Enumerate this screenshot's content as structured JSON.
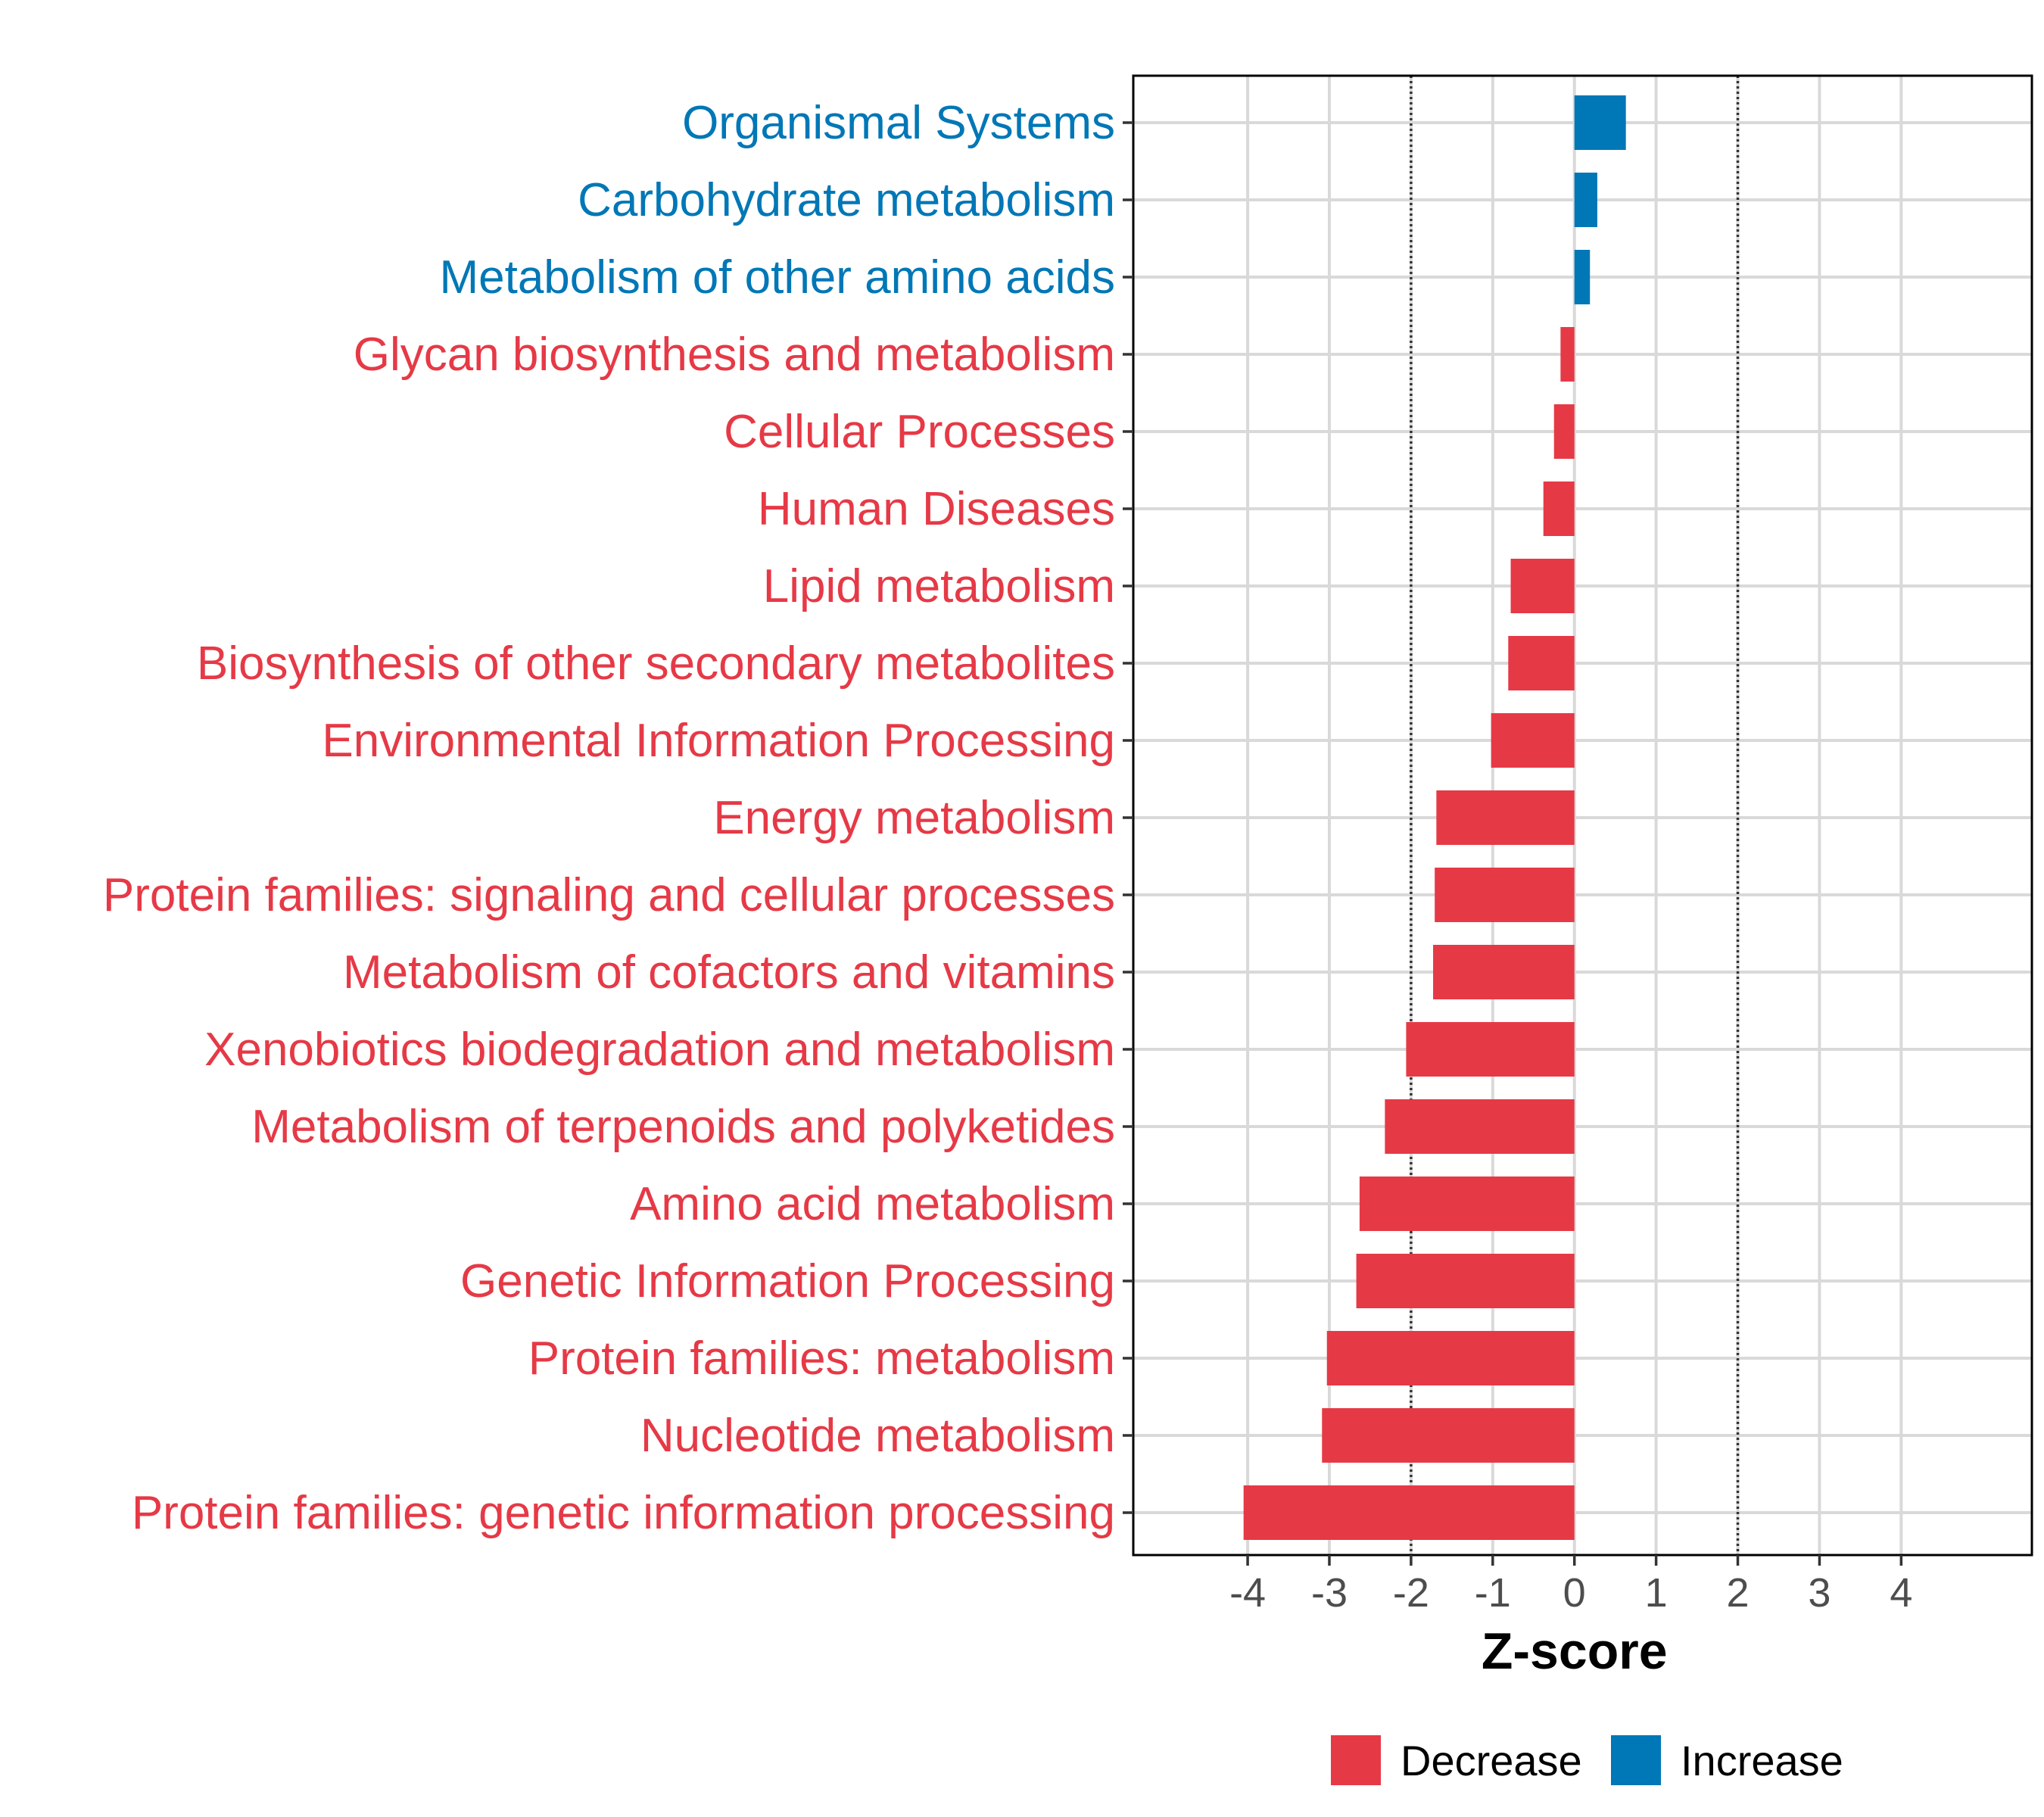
{
  "chart_data": {
    "type": "bar",
    "orientation": "horizontal",
    "categories": [
      "Organismal Systems",
      "Carbohydrate metabolism",
      "Metabolism of other amino acids",
      "Glycan biosynthesis and metabolism",
      "Cellular Processes",
      "Human Diseases",
      "Lipid metabolism",
      "Biosynthesis of other secondary metabolites",
      "Environmental Information Processing",
      "Energy metabolism",
      "Protein families: signaling and cellular processes",
      "Metabolism of cofactors and vitamins",
      "Xenobiotics biodegradation and metabolism",
      "Metabolism of terpenoids and polyketides",
      "Amino acid metabolism",
      "Genetic Information Processing",
      "Protein families: metabolism",
      "Nucleotide metabolism",
      "Protein families: genetic information processing"
    ],
    "values": [
      0.63,
      0.28,
      0.19,
      -0.17,
      -0.25,
      -0.38,
      -0.78,
      -0.81,
      -1.02,
      -1.69,
      -1.71,
      -1.73,
      -2.06,
      -2.32,
      -2.63,
      -2.67,
      -3.03,
      -3.09,
      -4.05
    ],
    "groups": [
      "Increase",
      "Increase",
      "Increase",
      "Decrease",
      "Decrease",
      "Decrease",
      "Decrease",
      "Decrease",
      "Decrease",
      "Decrease",
      "Decrease",
      "Decrease",
      "Decrease",
      "Decrease",
      "Decrease",
      "Decrease",
      "Decrease",
      "Decrease",
      "Decrease"
    ],
    "xlabel": "Z-score",
    "xlim": [
      -5.4,
      5.6
    ],
    "xticks": [
      -4,
      -3,
      -2,
      -1,
      0,
      1,
      2,
      3,
      4
    ],
    "xtick_labels": [
      "-4",
      "-3",
      "-2",
      "-1",
      "0",
      "1",
      "2",
      "3",
      "4"
    ],
    "reference_lines": [
      -2,
      2
    ],
    "grid": true,
    "legend": {
      "position": "bottom",
      "entries": [
        {
          "name": "Decrease",
          "color": "#e63946"
        },
        {
          "name": "Increase",
          "color": "#0077b6"
        }
      ]
    },
    "colors": {
      "Decrease": "#e63946",
      "Increase": "#0077b6"
    }
  }
}
